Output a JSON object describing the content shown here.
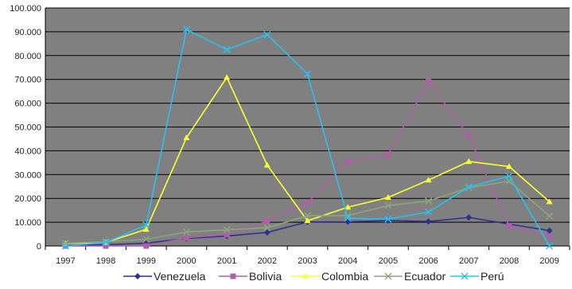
{
  "chart_data": {
    "type": "line",
    "title": "",
    "xlabel": "",
    "ylabel": "",
    "x": [
      "1997",
      "1998",
      "1999",
      "2000",
      "2001",
      "2002",
      "2003",
      "2004",
      "2005",
      "2006",
      "2007",
      "2008",
      "2009"
    ],
    "ylim": [
      0,
      100000
    ],
    "y_ticks": [
      {
        "value": 0,
        "label": "0"
      },
      {
        "value": 10000,
        "label": "10.000"
      },
      {
        "value": 20000,
        "label": "20.000"
      },
      {
        "value": 30000,
        "label": "30.000"
      },
      {
        "value": 40000,
        "label": "40.000"
      },
      {
        "value": 50000,
        "label": "50.000"
      },
      {
        "value": 60000,
        "label": "60.000"
      },
      {
        "value": 70000,
        "label": "70.000"
      },
      {
        "value": 80000,
        "label": "80.000"
      },
      {
        "value": 90000,
        "label": "90.000"
      },
      {
        "value": 100000,
        "label": "100.000"
      }
    ],
    "grid": true,
    "plot_background": "#808080",
    "gridline_color": "#000000",
    "legend_position": "bottom",
    "series": [
      {
        "name": "Venezuela",
        "color": "#2e3192",
        "marker": "diamond",
        "values": [
          300,
          500,
          1200,
          3200,
          4200,
          5700,
          10100,
          10200,
          10700,
          10300,
          12000,
          9200,
          6500
        ]
      },
      {
        "name": "Bolivia",
        "color": "#b05ea8",
        "marker": "square",
        "values": [
          0,
          0,
          0,
          3500,
          4800,
          10500,
          18200,
          35300,
          38400,
          69200,
          46200,
          8500,
          4100
        ]
      },
      {
        "name": "Colombia",
        "color": "#ffff33",
        "marker": "triangle",
        "values": [
          1000,
          1500,
          7000,
          45500,
          70800,
          34000,
          10600,
          16300,
          20400,
          27700,
          35500,
          33400,
          18600
        ]
      },
      {
        "name": "Ecuador",
        "color": "#8ea67a",
        "marker": "x",
        "values": [
          1200,
          1800,
          2800,
          5900,
          6800,
          7700,
          12700,
          12800,
          17000,
          18900,
          24500,
          27200,
          12600
        ]
      },
      {
        "name": "Perú",
        "color": "#29c0f2",
        "marker": "x",
        "values": [
          0,
          1500,
          8800,
          91000,
          82500,
          88800,
          72300,
          11700,
          11300,
          14300,
          24800,
          29400,
          0
        ]
      }
    ]
  }
}
